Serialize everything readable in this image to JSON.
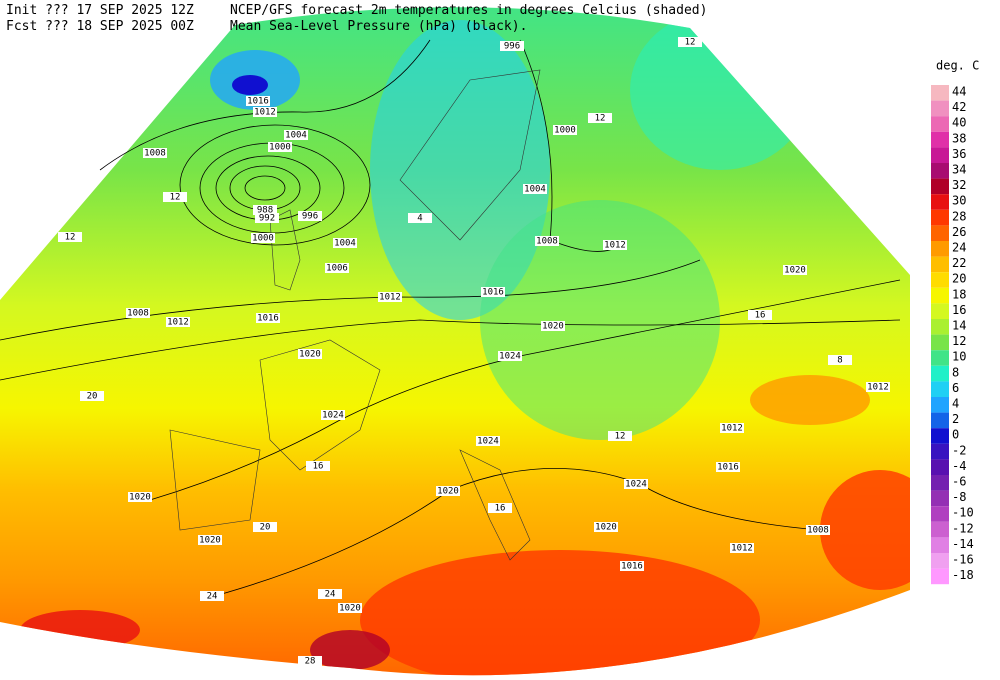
{
  "header": {
    "init": "Init  ??? 17 SEP 2025 12Z",
    "fcst": "Fcst ??? 18 SEP 2025 00Z",
    "title": "NCEP/GFS forecast 2m temperatures in degrees Celcius (shaded)",
    "subtitle": "Mean Sea-Level Pressure (hPa) (black)."
  },
  "legend": {
    "title": "deg. C",
    "items": [
      {
        "label": "44",
        "color": "#f6b8c0"
      },
      {
        "label": "42",
        "color": "#f090c0"
      },
      {
        "label": "40",
        "color": "#ec68b4"
      },
      {
        "label": "38",
        "color": "#e030a8"
      },
      {
        "label": "36",
        "color": "#c81896"
      },
      {
        "label": "34",
        "color": "#a80c70"
      },
      {
        "label": "32",
        "color": "#b00028"
      },
      {
        "label": "30",
        "color": "#e81010"
      },
      {
        "label": "28",
        "color": "#ff3800"
      },
      {
        "label": "26",
        "color": "#ff6400"
      },
      {
        "label": "24",
        "color": "#ff9a00"
      },
      {
        "label": "22",
        "color": "#ffbe00"
      },
      {
        "label": "20",
        "color": "#ffdc00"
      },
      {
        "label": "18",
        "color": "#f6f600"
      },
      {
        "label": "16",
        "color": "#d4f820"
      },
      {
        "label": "14",
        "color": "#aaf030"
      },
      {
        "label": "12",
        "color": "#78e448"
      },
      {
        "label": "10",
        "color": "#40e488"
      },
      {
        "label": "8",
        "color": "#20f0c8"
      },
      {
        "label": "6",
        "color": "#20d0f4"
      },
      {
        "label": "4",
        "color": "#20a4ff"
      },
      {
        "label": "2",
        "color": "#1464e8"
      },
      {
        "label": "0",
        "color": "#1010d0"
      },
      {
        "label": "-2",
        "color": "#3814c0"
      },
      {
        "label": "-4",
        "color": "#5810b0"
      },
      {
        "label": "-6",
        "color": "#7420b0"
      },
      {
        "label": "-8",
        "color": "#9430b4"
      },
      {
        "label": "-10",
        "color": "#b040c0"
      },
      {
        "label": "-12",
        "color": "#cc60d0"
      },
      {
        "label": "-14",
        "color": "#e080e4"
      },
      {
        "label": "-16",
        "color": "#f0a0f0"
      },
      {
        "label": "-18",
        "color": "#ff98ff"
      }
    ]
  },
  "map": {
    "labels": [
      "1016",
      "1012",
      "1004",
      "1000",
      "1008",
      "988",
      "992",
      "996",
      "1000",
      "1004",
      "1006",
      "1012",
      "1008",
      "1012",
      "1016",
      "1020",
      "1024",
      "1020",
      "1020",
      "1020",
      "1020",
      "1024",
      "1024",
      "1020",
      "1016",
      "1008",
      "1012",
      "1004",
      "1000",
      "996",
      "1020",
      "1012",
      "1012",
      "1016",
      "1024",
      "1020",
      "1016",
      "1012",
      "1008",
      "12",
      "12",
      "20",
      "20",
      "24",
      "24",
      "28",
      "16",
      "16",
      "12",
      "12",
      "12",
      "8",
      "4",
      "16"
    ]
  }
}
